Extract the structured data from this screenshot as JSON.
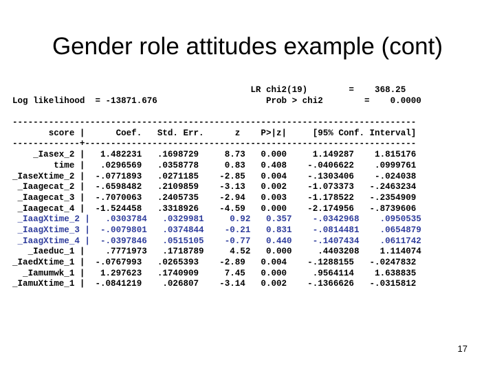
{
  "slide": {
    "title": "Gender role attitudes example (cont)",
    "page_number": "17"
  },
  "output": {
    "header": [
      "                                              LR chi2(19)        =    368.25",
      "Log likelihood  = -13871.676                     Prob > chi2        =    0.0000"
    ],
    "rule": "------------------------------------------------------------------------------",
    "column_header": "       score |      Coef.   Std. Err.      z    P>|z|     [95% Conf. Interval]",
    "separator": "-------------+----------------------------------------------------------------",
    "rows": [
      {
        "text": "    _Iasex_2 |   1.482231   .1698729     8.73   0.000     1.149287    1.815176",
        "highlight": false
      },
      {
        "text": "        time |   .0296569   .0358778     0.83   0.408    -.0406622    .0999761",
        "highlight": false
      },
      {
        "text": "_IaseXtime_2 |  -.0771893   .0271185    -2.85   0.004    -.1303406    -.024038",
        "highlight": false
      },
      {
        "text": " _Iaagecat_2 |  -.6598482   .2109859    -3.13   0.002    -1.073373   -.2463234",
        "highlight": false
      },
      {
        "text": " _Iaagecat_3 |  -.7070063   .2405735    -2.94   0.003    -1.178522   -.2354909",
        "highlight": false
      },
      {
        "text": " _Iaagecat_4 |  -1.524458   .3318926    -4.59   0.000    -2.174956   -.8739606",
        "highlight": false
      },
      {
        "text": " _IaagXtime_2 |   .0303784   .0329981     0.92   0.357    -.0342968    .0950535",
        "highlight": true
      },
      {
        "text": " _IaagXtime_3 |  -.0079801   .0374844    -0.21   0.831    -.0814481    .0654879",
        "highlight": true
      },
      {
        "text": " _IaagXtime_4 |  -.0397846   .0515105    -0.77   0.440    -.1407434    .0611742",
        "highlight": true
      },
      {
        "text": "   _Iaeduc_1 |    .7771973   .1718789     4.52   0.000     .4403208    1.114074",
        "highlight": false
      },
      {
        "text": "_IaedXtime_1 |  -.0767993   .0265393    -2.89   0.004    -.1288155   -.0247832",
        "highlight": false
      },
      {
        "text": "  _Iamumwk_1 |   1.297623   .1740909     7.45   0.000     .9564114    1.638835",
        "highlight": false
      },
      {
        "text": "_IamuXtime_1 |  -.0841219    .026807    -3.14   0.002    -.1366626   -.0315812",
        "highlight": false
      }
    ]
  },
  "colors": {
    "highlight": "#2f3d9c",
    "text": "#000000",
    "background": "#ffffff"
  }
}
